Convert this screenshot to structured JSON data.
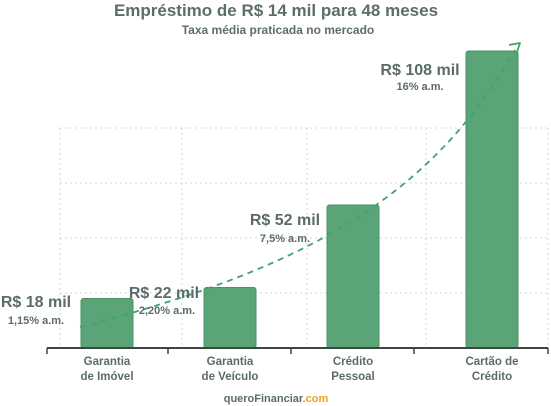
{
  "chart_data": {
    "type": "bar",
    "title": "Empréstimo de R$ 14 mil para 48 meses",
    "subtitle": "Taxa média praticada no mercado",
    "categories": [
      [
        "Garantia",
        "de Imóvel"
      ],
      [
        "Garantia",
        "de Veículo"
      ],
      [
        "Crédito",
        "Pessoal"
      ],
      [
        "Cartão de",
        "Crédito"
      ]
    ],
    "values": [
      18,
      22,
      52,
      108
    ],
    "value_labels": [
      "R$ 18 mil",
      "R$ 22 mil",
      "R$ 52 mil",
      "R$ 108 mil"
    ],
    "rate_labels": [
      "1,15% a.m.",
      "2,20% a.m.",
      "7,5% a.m.",
      "16% a.m."
    ],
    "ylim": [
      0,
      120
    ],
    "grid": true,
    "trend_line": "dashed arrow",
    "colors": {
      "bar": "#5aa478",
      "bar_edge": "#4b9066",
      "trend": "#3fa56c",
      "grid": "#cfd9d4",
      "axis": "#3d4543",
      "text": "#5b6b6a"
    }
  },
  "footer": {
    "brand_main": "queroFinanciar",
    "brand_suffix": ".com",
    "color_main": "#5b6b6a",
    "color_suffix": "#f0a21e"
  }
}
